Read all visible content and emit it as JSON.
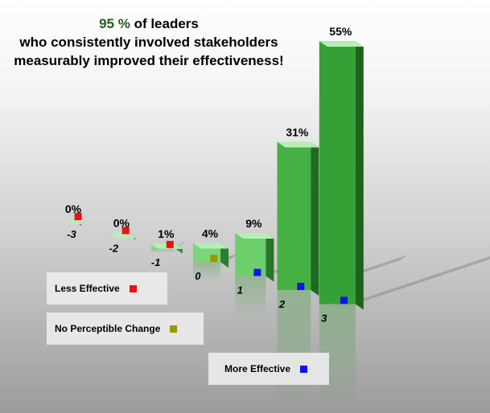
{
  "title": {
    "highlight": "95 %",
    "line1_rest": " of leaders",
    "line2": "who consistently involved stakeholders",
    "line3": "measurably improved their effectiveness!"
  },
  "chart_data": {
    "type": "bar",
    "categories": [
      "-3",
      "-2",
      "-1",
      "0",
      "1",
      "2",
      "3"
    ],
    "values": [
      0,
      0,
      1,
      4,
      9,
      31,
      55
    ],
    "value_labels": [
      "0%",
      "0%",
      "1%",
      "4%",
      "9%",
      "31%",
      "55%"
    ],
    "ylim": [
      0,
      55
    ],
    "grid": false,
    "legend": [
      {
        "label": "Less Effective",
        "color": "#ee1111"
      },
      {
        "label": "No Perceptible Change",
        "color": "#999900"
      },
      {
        "label": "More Effective",
        "color": "#1111ee"
      }
    ]
  }
}
